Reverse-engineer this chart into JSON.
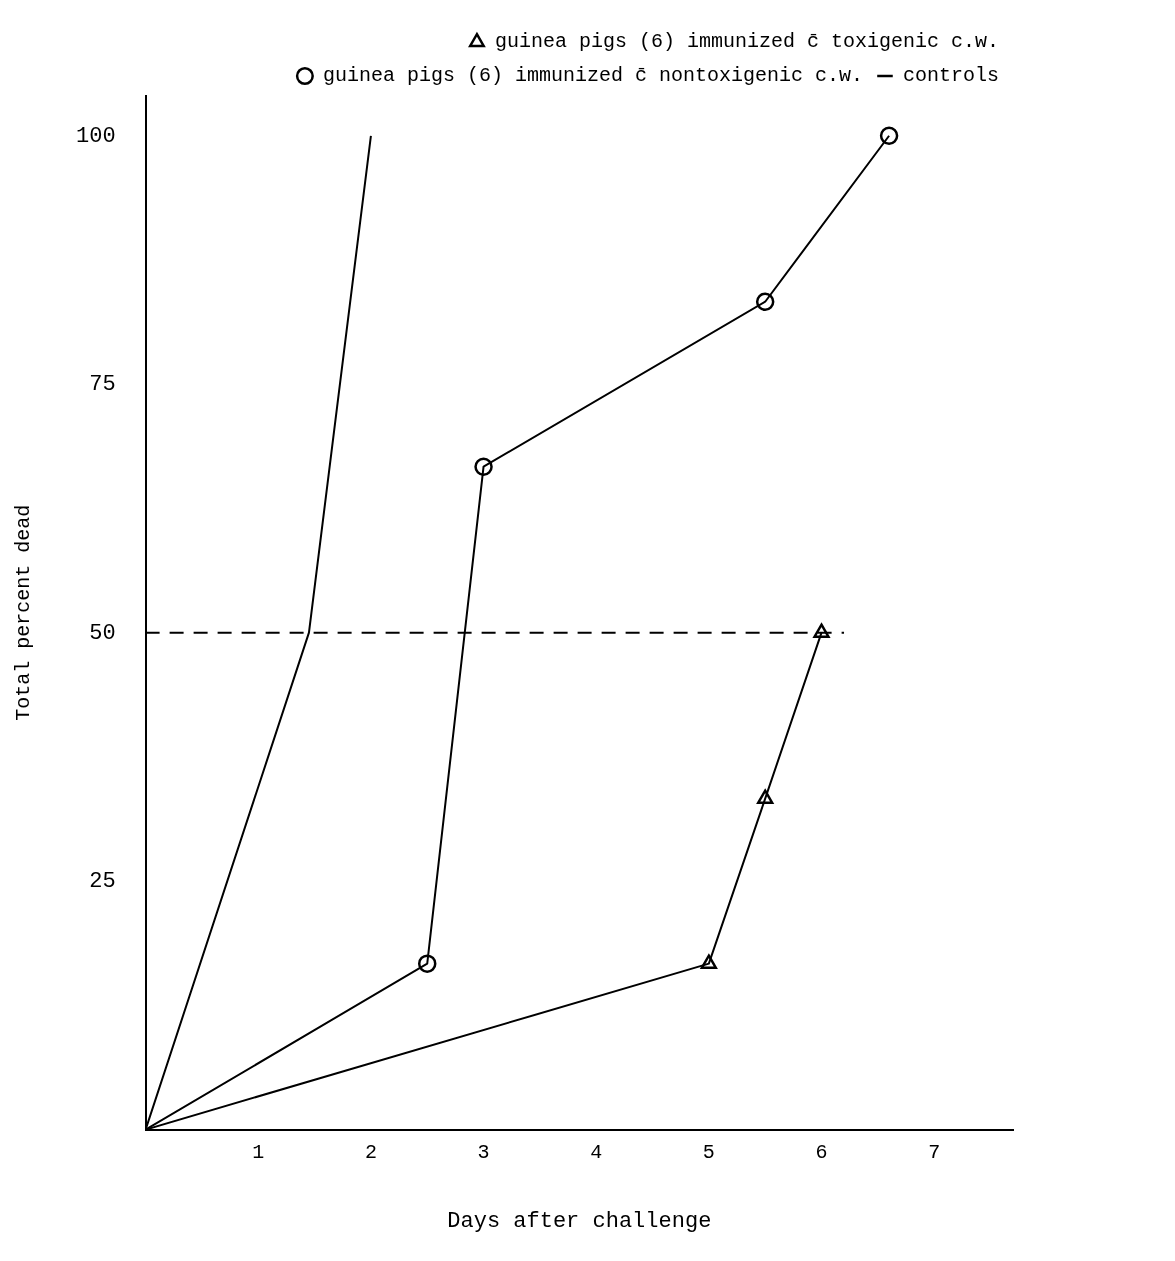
{
  "chart_data": {
    "type": "line",
    "xlabel": "Days after challenge",
    "ylabel": "Total percent dead",
    "xlim": [
      0,
      7.7
    ],
    "xticks": [
      1,
      2,
      3,
      4,
      5,
      6,
      7
    ],
    "ylim": [
      0,
      104
    ],
    "yticks": [
      25,
      50,
      75,
      100
    ],
    "grid": false,
    "legend": "top right",
    "series": [
      {
        "name": "guinea pigs (6) immunized c̄ toxigenic c.w.",
        "color": "#000000",
        "marker": "triangle",
        "x": [
          0,
          5,
          5.5,
          6
        ],
        "values": [
          0,
          16.7,
          33.3,
          50
        ]
      },
      {
        "name": "guinea pigs (6) immunized c̄ nontoxigenic c.w.",
        "color": "#000000",
        "marker": "circle",
        "x": [
          0,
          2.5,
          3,
          5.5,
          6.6
        ],
        "values": [
          0,
          16.7,
          66.7,
          83.3,
          100
        ]
      },
      {
        "name": "controls",
        "color": "#000000",
        "marker": "none",
        "x": [
          0,
          1.45,
          2
        ],
        "values": [
          0,
          50,
          100
        ]
      }
    ],
    "ref_lines": [
      {
        "axis": "y",
        "value": 50,
        "color": "#000000",
        "line_style": "dashed"
      }
    ]
  }
}
